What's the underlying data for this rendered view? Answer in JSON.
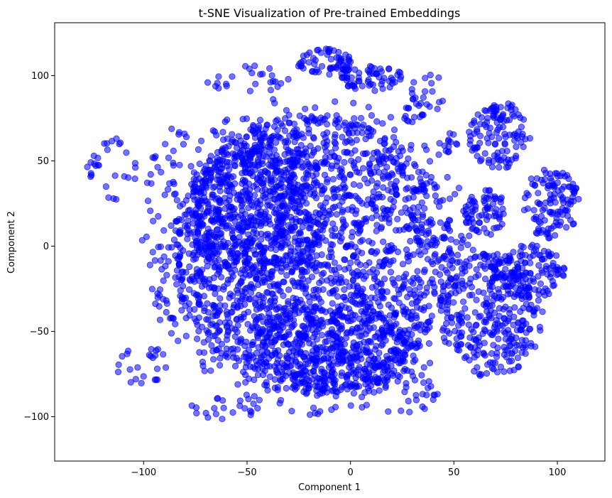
{
  "chart_data": {
    "type": "scatter",
    "title": "t-SNE Visualization of Pre-trained Embeddings",
    "xlabel": "Component 1",
    "ylabel": "Component 2",
    "xlim": [
      -143,
      123
    ],
    "ylim": [
      -126,
      131
    ],
    "xticks": [
      -100,
      -50,
      0,
      50,
      100
    ],
    "yticks": [
      100,
      50,
      0,
      -50,
      -100
    ],
    "xtick_labels": [
      "−100",
      "−50",
      "0",
      "50",
      "100"
    ],
    "ytick_labels": [
      "100",
      "50",
      "0",
      "−50",
      "−100"
    ],
    "grid": false,
    "legend": "none",
    "marker_color": "#0000ff",
    "marker_alpha": 0.55,
    "series": [
      {
        "clusters": [
          {
            "center": [
              -18,
              -5
            ],
            "radius": [
              68,
              82
            ],
            "density": "dense"
          },
          {
            "center": [
              -45,
              20
            ],
            "radius": [
              30,
              40
            ],
            "density": "dense"
          },
          {
            "center": [
              -10,
              -60
            ],
            "radius": [
              38,
              25
            ],
            "density": "dense"
          },
          {
            "center": [
              -12,
              108
            ],
            "radius": [
              12,
              7
            ],
            "density": "dense"
          },
          {
            "center": [
              10,
              99
            ],
            "radius": [
              13,
              7
            ],
            "density": "dense"
          },
          {
            "center": [
              72,
              65
            ],
            "radius": [
              13,
              17
            ],
            "density": "dense"
          },
          {
            "center": [
              97,
              25
            ],
            "radius": [
              12,
              18
            ],
            "density": "dense"
          },
          {
            "center": [
              65,
              20
            ],
            "radius": [
              9,
              12
            ],
            "density": "dense"
          },
          {
            "center": [
              68,
              -38
            ],
            "radius": [
              22,
              34
            ],
            "density": "dense"
          },
          {
            "center": [
              85,
              -15
            ],
            "radius": [
              16,
              14
            ],
            "density": "dense"
          },
          {
            "center": [
              -100,
              -70
            ],
            "radius": [
              12,
              10
            ],
            "density": "sparse"
          },
          {
            "center": [
              -115,
              45
            ],
            "radius": [
              11,
              16
            ],
            "density": "sparse"
          },
          {
            "center": [
              -50,
              98
            ],
            "radius": [
              18,
              7
            ],
            "density": "sparse"
          },
          {
            "center": [
              38,
              90
            ],
            "radius": [
              8,
              10
            ],
            "density": "sparse"
          },
          {
            "center": [
              47,
              60
            ],
            "radius": [
              4,
              6
            ],
            "density": "sparse"
          },
          {
            "center": [
              30,
              80
            ],
            "radius": [
              5,
              7
            ],
            "density": "sparse"
          },
          {
            "center": [
              -85,
              10
            ],
            "radius": [
              14,
              55
            ],
            "density": "sparse"
          },
          {
            "center": [
              25,
              -85
            ],
            "radius": [
              15,
              12
            ],
            "density": "sparse"
          },
          {
            "center": [
              -60,
              -95
            ],
            "radius": [
              15,
              6
            ],
            "density": "sparse"
          }
        ]
      }
    ]
  }
}
